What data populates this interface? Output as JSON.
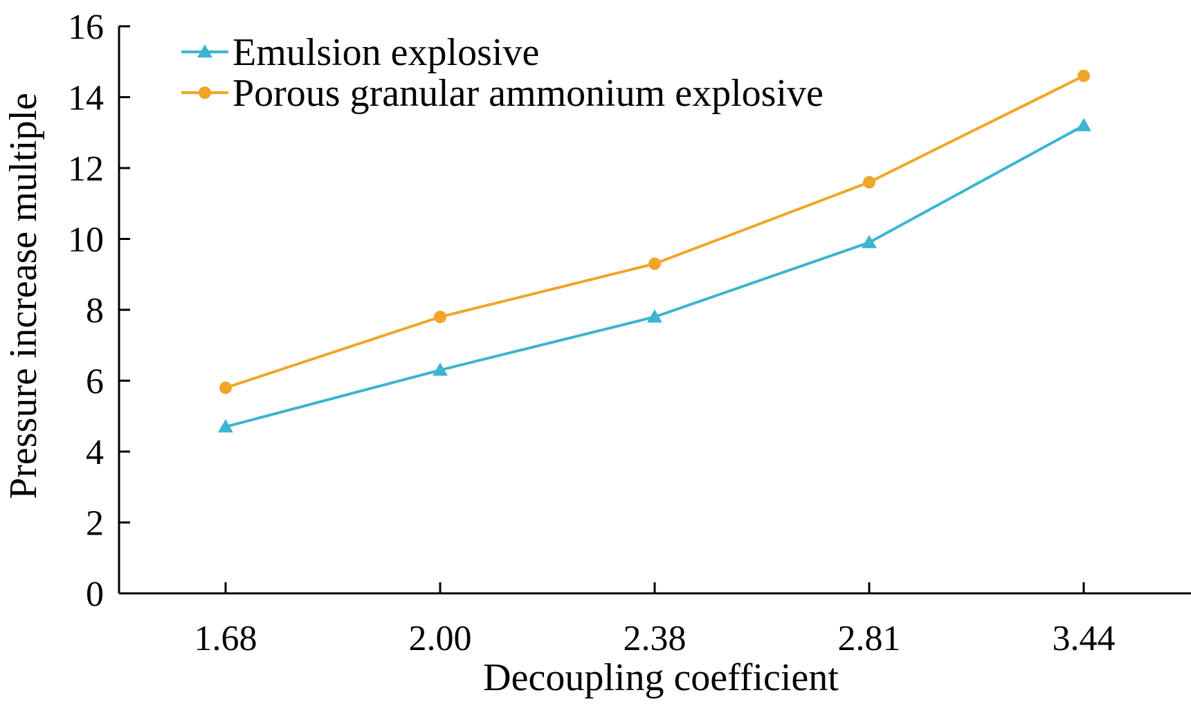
{
  "chart_data": {
    "type": "line",
    "title": "",
    "xlabel": "Decoupling coefficient",
    "ylabel": "Pressure increase multiple",
    "categories": [
      "1.68",
      "2.00",
      "2.38",
      "2.81",
      "3.44"
    ],
    "ylim": [
      0,
      16
    ],
    "yticks": [
      0,
      2,
      4,
      6,
      8,
      10,
      12,
      14,
      16
    ],
    "yticks_labels": [
      "0",
      "2",
      "4",
      "6",
      "8",
      "10",
      "12",
      "14",
      "16"
    ],
    "grid": false,
    "legend_position": "top-left",
    "series": [
      {
        "name": "Emulsion explosive",
        "color": "#3cb4d2",
        "marker": "triangle",
        "values": [
          4.7,
          6.3,
          7.8,
          9.9,
          13.2
        ]
      },
      {
        "name": "Porous granular ammonium explosive",
        "color": "#f0a528",
        "marker": "circle",
        "values": [
          5.8,
          7.8,
          9.3,
          11.6,
          14.6
        ]
      }
    ]
  }
}
